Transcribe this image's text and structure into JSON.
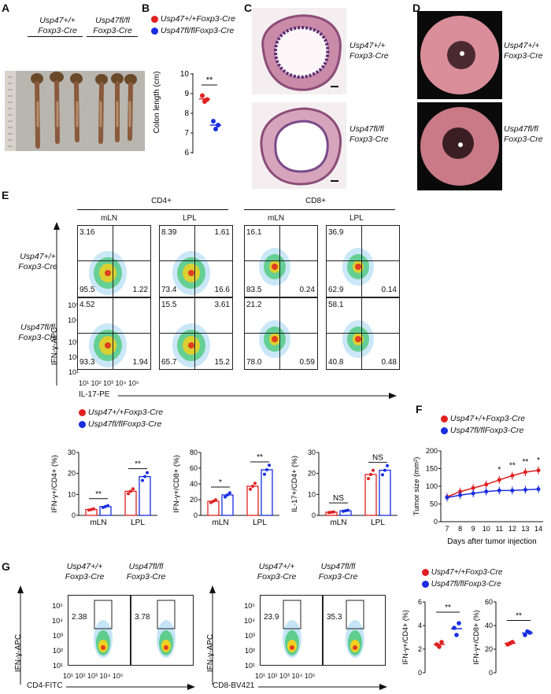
{
  "panels": {
    "A": "A",
    "B": "B",
    "C": "C",
    "D": "D",
    "E": "E",
    "F": "F",
    "G": "G"
  },
  "genotypes": {
    "wt_line1": "Usp47+/+",
    "ko_line1": "Usp47fl/fl",
    "cre": "Foxp3-Cre"
  },
  "legend": {
    "wt": "Usp47+/+Foxp3-Cre",
    "ko": "Usp47fl/flFoxp3-Cre",
    "wt_color": "#e02020",
    "ko_color": "#1a2ee0"
  },
  "panelB": {
    "ylabel": "Colon length (cm)",
    "sig": "**",
    "yticks": [
      "10",
      "9",
      "8",
      "7",
      "6"
    ]
  },
  "panelE": {
    "header_cd4": "CD4+",
    "header_cd8": "CD8+",
    "col_mln": "mLN",
    "col_lpl": "LPL",
    "y_axis": "IFN-γ-APC",
    "x_axis": "IL-17-PE",
    "yticks": [
      "10⁵",
      "10⁴",
      "10³",
      "10²",
      "10¹"
    ],
    "xticks": "10¹ 10² 10³ 10⁴ 10⁵",
    "row1": [
      {
        "tl": "3.16",
        "tr": "",
        "bl": "95.5",
        "br": "1.22"
      },
      {
        "tl": "8.39",
        "tr": "1.61",
        "bl": "73.4",
        "br": "16.6"
      },
      {
        "tl": "16.1",
        "tr": "",
        "bl": "83.5",
        "br": "0.24"
      },
      {
        "tl": "36.9",
        "tr": "",
        "bl": "62.9",
        "br": "0.14"
      }
    ],
    "row2": [
      {
        "tl": "4.52",
        "tr": "",
        "bl": "93.3",
        "br": "1.94"
      },
      {
        "tl": "15.5",
        "tr": "3.61",
        "bl": "65.7",
        "br": "15.2"
      },
      {
        "tl": "21.2",
        "tr": "",
        "bl": "78.0",
        "br": "0.59"
      },
      {
        "tl": "58.1",
        "tr": "",
        "bl": "40.8",
        "br": "0.48"
      }
    ]
  },
  "panelEbars": {
    "charts": [
      {
        "ylabel": "IFN-γ+/CD4+ (%)",
        "yticks": [
          "30",
          "20",
          "10",
          "0"
        ],
        "sig1": "**",
        "sig2": "**",
        "x1": "mLN",
        "x2": "LPL"
      },
      {
        "ylabel": "IFN-γ+/CD8+ (%)",
        "yticks": [
          "80",
          "60",
          "40",
          "20",
          "0"
        ],
        "sig1": "*",
        "sig2": "**",
        "x1": "mLN",
        "x2": "LPL"
      },
      {
        "ylabel": "IL-17+/CD4+ (%)",
        "yticks": [
          "30",
          "20",
          "10",
          "0"
        ],
        "sig1": "NS",
        "sig2": "NS",
        "x1": "mLN",
        "x2": "LPL"
      }
    ]
  },
  "chart_data": [
    {
      "type": "scatter",
      "panel": "B",
      "ylabel": "Colon length (cm)",
      "ylim": [
        6,
        10
      ],
      "series": [
        {
          "name": "Usp47+/+Foxp3-Cre",
          "values": [
            8.9,
            8.6,
            8.7
          ]
        },
        {
          "name": "Usp47fl/flFoxp3-Cre",
          "values": [
            7.6,
            7.2,
            7.4
          ]
        }
      ]
    },
    {
      "type": "bar",
      "panel": "E",
      "ylabel": "IFN-γ+/CD4+ (%)",
      "categories": [
        "mLN",
        "LPL"
      ],
      "ylim": [
        0,
        30
      ],
      "series": [
        {
          "name": "Usp47+/+Foxp3-Cre",
          "values": [
            2.8,
            11.5
          ]
        },
        {
          "name": "Usp47fl/flFoxp3-Cre",
          "values": [
            4.2,
            18.5
          ]
        }
      ]
    },
    {
      "type": "bar",
      "panel": "E",
      "ylabel": "IFN-γ+/CD8+ (%)",
      "categories": [
        "mLN",
        "LPL"
      ],
      "ylim": [
        0,
        80
      ],
      "series": [
        {
          "name": "Usp47+/+Foxp3-Cre",
          "values": [
            18,
            37
          ]
        },
        {
          "name": "Usp47fl/flFoxp3-Cre",
          "values": [
            26,
            58
          ]
        }
      ]
    },
    {
      "type": "bar",
      "panel": "E",
      "ylabel": "IL-17+/CD4+ (%)",
      "categories": [
        "mLN",
        "LPL"
      ],
      "ylim": [
        0,
        30
      ],
      "series": [
        {
          "name": "Usp47+/+Foxp3-Cre",
          "values": [
            1.5,
            19.5
          ]
        },
        {
          "name": "Usp47fl/flFoxp3-Cre",
          "values": [
            2.2,
            21.5
          ]
        }
      ]
    },
    {
      "type": "line",
      "panel": "F",
      "xlabel": "Days after tumor injection",
      "ylabel": "Tumor size (mm2)",
      "x": [
        7,
        8,
        9,
        10,
        11,
        12,
        13,
        14
      ],
      "ylim": [
        0,
        200
      ],
      "series": [
        {
          "name": "Usp47+/+Foxp3-Cre",
          "values": [
            70,
            85,
            95,
            105,
            118,
            130,
            140,
            145
          ]
        },
        {
          "name": "Usp47fl/flFoxp3-Cre",
          "values": [
            68,
            75,
            80,
            85,
            88,
            88,
            90,
            92
          ]
        }
      ],
      "sig": [
        "",
        "",
        "",
        "",
        "*",
        "**",
        "**",
        "*"
      ]
    },
    {
      "type": "scatter",
      "panel": "G",
      "ylabel": "IFN-γ+/CD4+ (%)",
      "ylim": [
        0,
        6
      ],
      "series": [
        {
          "name": "Usp47+/+Foxp3-Cre",
          "values": [
            2.4,
            2.2,
            2.6
          ]
        },
        {
          "name": "Usp47fl/flFoxp3-Cre",
          "values": [
            3.8,
            3.2,
            4.2
          ]
        }
      ]
    },
    {
      "type": "scatter",
      "panel": "G",
      "ylabel": "IFN-γ+/CD8+ (%)",
      "ylim": [
        0,
        60
      ],
      "series": [
        {
          "name": "Usp47+/+Foxp3-Cre",
          "values": [
            24,
            25,
            26
          ]
        },
        {
          "name": "Usp47fl/flFoxp3-Cre",
          "values": [
            32,
            35,
            34
          ]
        }
      ]
    }
  ],
  "panelF": {
    "ylabel": "Tumor size (mm²)",
    "xlabel": "Days after tumor injection",
    "yticks": [
      "200",
      "150",
      "100",
      "50",
      "0"
    ],
    "xticks": [
      "7",
      "8",
      "9",
      "10",
      "11",
      "12",
      "13",
      "14"
    ],
    "sigs": [
      "*",
      "**",
      "**",
      "*"
    ]
  },
  "panelG": {
    "y_axis": "IFN-γ-APC",
    "x_cd4": "CD4-FITC",
    "x_cd8": "CD8-BV421",
    "values": [
      "2.38",
      "3.78",
      "23.9",
      "35.3"
    ],
    "yticks": [
      "10⁵",
      "10⁴",
      "10³",
      "10²",
      "10¹"
    ],
    "xticks": "10¹ 10² 10³ 10⁴ 10⁵",
    "chart1": {
      "ylabel": "IFN-γ+/CD4+ (%)",
      "yticks": [
        "6",
        "4",
        "2",
        "0"
      ],
      "sig": "**"
    },
    "chart2": {
      "ylabel": "IFN-γ+/CD8+ (%)",
      "yticks": [
        "60",
        "40",
        "20",
        "0"
      ],
      "sig": "**"
    }
  }
}
